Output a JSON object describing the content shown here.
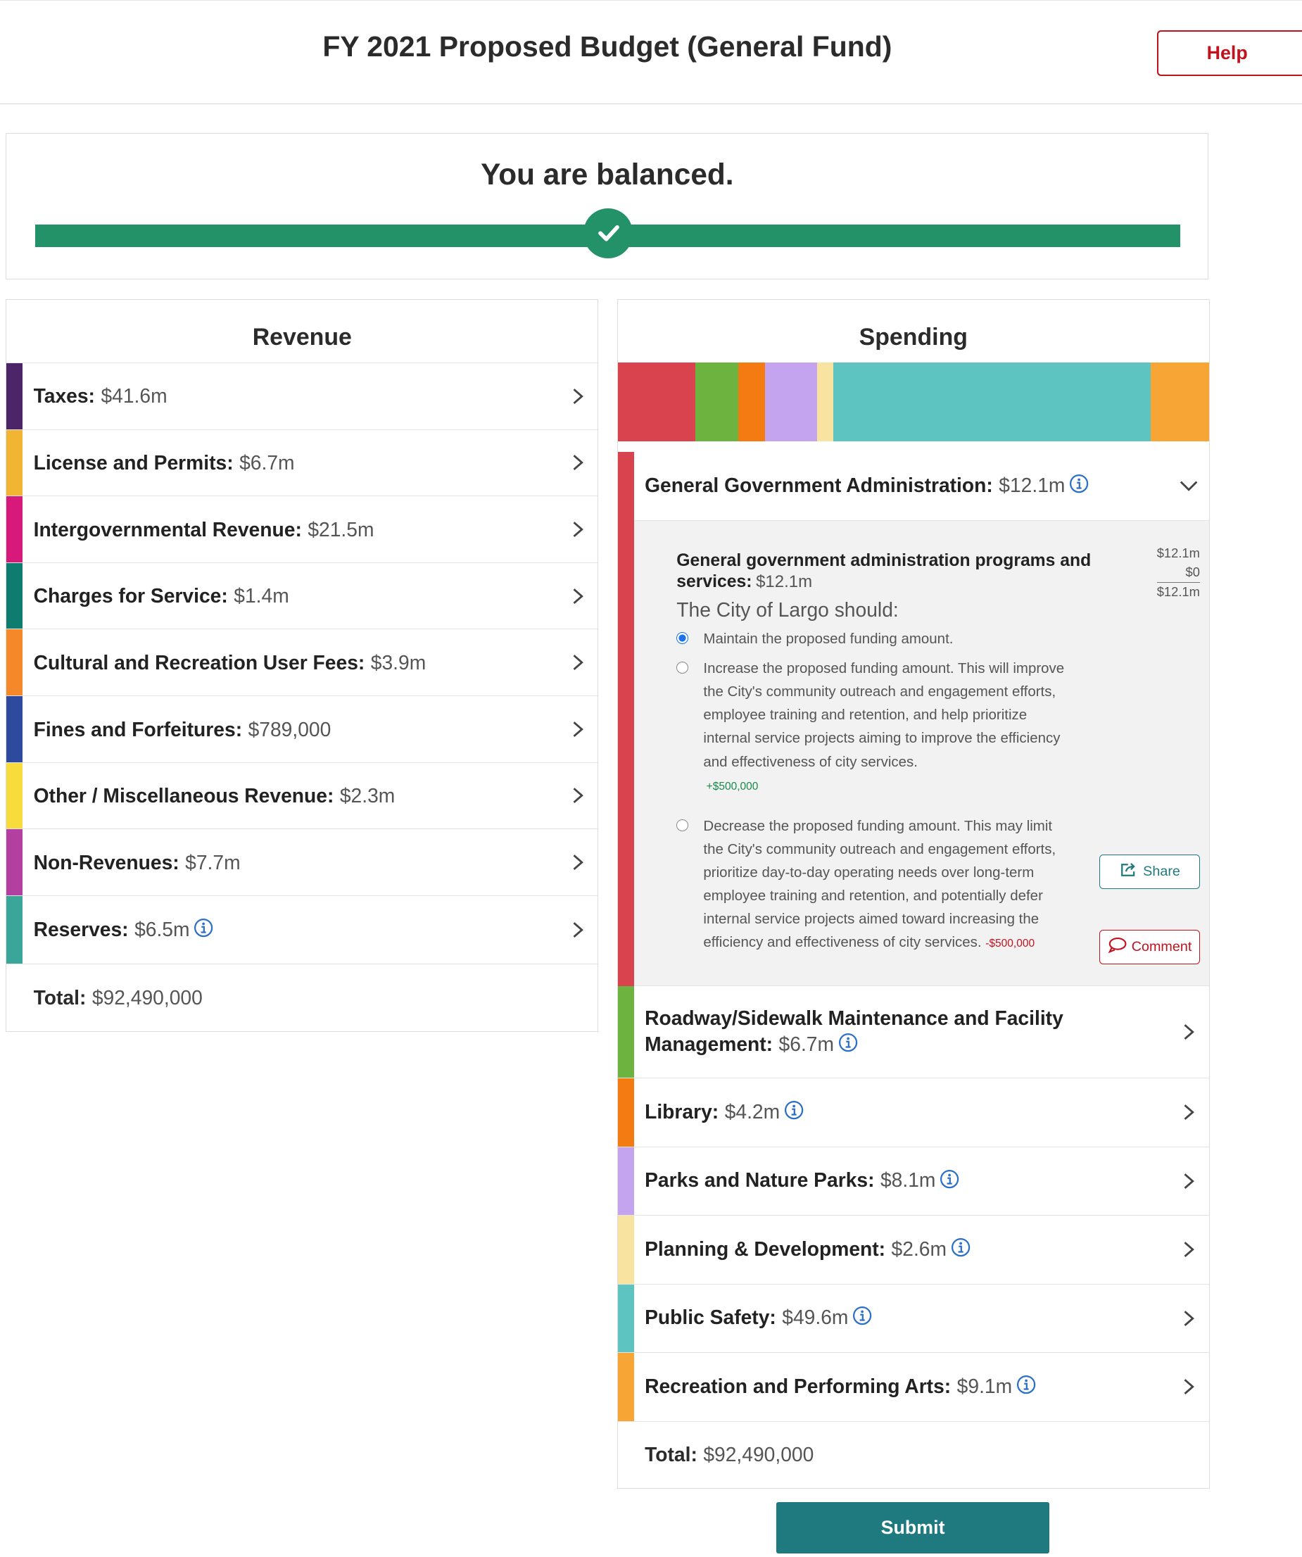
{
  "header": {
    "title": "FY 2021 Proposed Budget (General Fund)",
    "help": "Help"
  },
  "status": {
    "message": "You are balanced."
  },
  "revenue": {
    "title": "Revenue",
    "items": [
      {
        "name": "Taxes:",
        "amount": "$41.6m",
        "color": "#4b2568"
      },
      {
        "name": "License and Permits:",
        "amount": "$6.7m",
        "color": "#f2b533"
      },
      {
        "name": "Intergovernmental Revenue:",
        "amount": "$21.5m",
        "color": "#d6197a"
      },
      {
        "name": "Charges for Service:",
        "amount": "$1.4m",
        "color": "#0e7c6e"
      },
      {
        "name": "Cultural and Recreation User Fees:",
        "amount": "$3.9m",
        "color": "#f5892a"
      },
      {
        "name": "Fines and Forfeitures:",
        "amount": "$789,000",
        "color": "#2e4a9e"
      },
      {
        "name": "Other / Miscellaneous Revenue:",
        "amount": "$2.3m",
        "color": "#f7dc3c"
      },
      {
        "name": "Non-Revenues:",
        "amount": "$7.7m",
        "color": "#b33fa0"
      },
      {
        "name": "Reserves:",
        "amount": "$6.5m",
        "color": "#3aa69a",
        "info": true
      }
    ],
    "total_label": "Total:",
    "total": "$92,490,000"
  },
  "spending": {
    "title": "Spending",
    "items": [
      {
        "name": "General Government Administration:",
        "amount": "$12.1m",
        "color": "#d9434e",
        "info": true,
        "expanded": true
      },
      {
        "name": "Roadway/Sidewalk Maintenance and Facility Management:",
        "amount": "$6.7m",
        "color": "#6cb33f",
        "info": true
      },
      {
        "name": "Library:",
        "amount": "$4.2m",
        "color": "#f47b12",
        "info": true
      },
      {
        "name": "Parks and Nature Parks:",
        "amount": "$8.1m",
        "color": "#c4a3ef",
        "info": true
      },
      {
        "name": "Planning & Development:",
        "amount": "$2.6m",
        "color": "#f9e3a0",
        "info": true
      },
      {
        "name": "Public Safety:",
        "amount": "$49.6m",
        "color": "#5ec4c2",
        "info": true
      },
      {
        "name": "Recreation and Performing Arts:",
        "amount": "$9.1m",
        "color": "#f7a535",
        "info": true
      }
    ],
    "detail": {
      "title": "General government administration programs and services:",
      "amount": "$12.1m",
      "summary": [
        "$12.1m",
        "$0",
        "$12.1m"
      ],
      "prompt": "The City of Largo should:",
      "selected": 0,
      "options": [
        {
          "text": "Maintain the proposed funding amount."
        },
        {
          "text": "Increase the proposed funding amount. This will improve the City's community outreach and engagement efforts, employee training and retention, and help prioritize internal service projects aiming to improve the efficiency and effectiveness of city services.",
          "delta": "+$500,000"
        },
        {
          "text": "Decrease the proposed funding amount. This may limit the City's community outreach and engagement efforts, prioritize day-to-day operating needs over long-term employee training and retention, and potentially defer internal service projects aimed toward increasing the efficiency and effectiveness of city services.",
          "delta": "-$500,000"
        }
      ],
      "share": "Share",
      "comment": "Comment"
    },
    "total_label": "Total:",
    "total": "$92,490,000"
  },
  "submit": "Submit"
}
